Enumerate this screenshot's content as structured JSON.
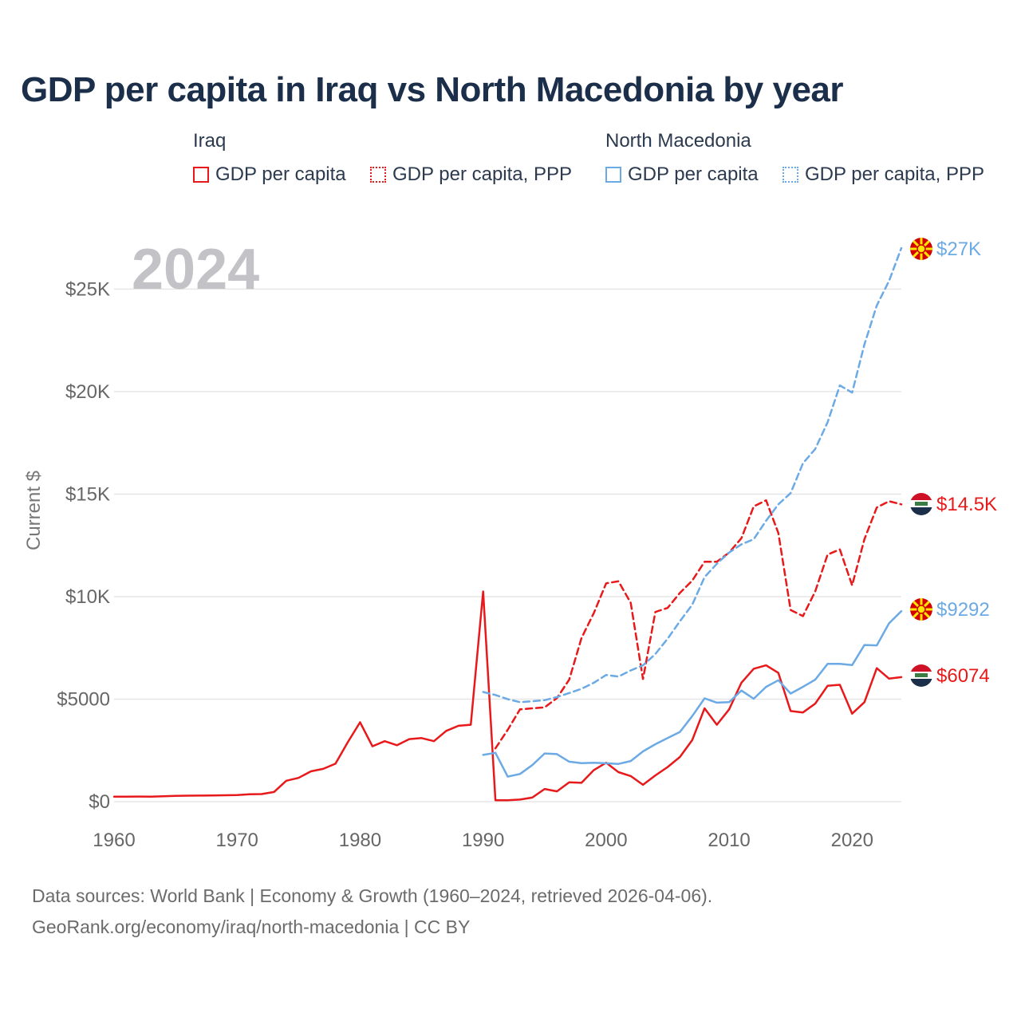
{
  "chart_data": {
    "type": "line",
    "title": "GDP per capita in Iraq vs North Macedonia by year",
    "ylabel": "Current $",
    "xlabel": "",
    "year_label": "2024",
    "xlim": [
      1960,
      2024
    ],
    "ylim": [
      0,
      27000
    ],
    "x_ticks": [
      1960,
      1970,
      1980,
      1990,
      2000,
      2010,
      2020
    ],
    "x_tick_labels": [
      "1960",
      "1970",
      "1980",
      "1990",
      "2000",
      "2010",
      "2020"
    ],
    "y_ticks": [
      0,
      5000,
      10000,
      15000,
      20000,
      25000
    ],
    "y_tick_labels": [
      "$0",
      "$5000",
      "$10K",
      "$15K",
      "$20K",
      "$25K"
    ],
    "legend_groups": [
      {
        "title": "Iraq",
        "items": [
          "GDP per capita",
          "GDP per capita, PPP"
        ]
      },
      {
        "title": "North Macedonia",
        "items": [
          "GDP per capita",
          "GDP per capita, PPP"
        ]
      }
    ],
    "series": [
      {
        "name": "Iraq GDP per capita",
        "country": "Iraq",
        "color": "#e8191a",
        "style": "solid",
        "end_label": "$6074",
        "x": [
          1960,
          1961,
          1962,
          1963,
          1964,
          1965,
          1966,
          1967,
          1968,
          1969,
          1970,
          1971,
          1972,
          1973,
          1974,
          1975,
          1976,
          1977,
          1978,
          1979,
          1980,
          1981,
          1982,
          1983,
          1984,
          1985,
          1986,
          1987,
          1988,
          1989,
          1990,
          1991,
          1992,
          1993,
          1994,
          1995,
          1996,
          1997,
          1998,
          1999,
          2000,
          2001,
          2002,
          2003,
          2004,
          2005,
          2006,
          2007,
          2008,
          2009,
          2010,
          2011,
          2012,
          2013,
          2014,
          2015,
          2016,
          2017,
          2018,
          2019,
          2020,
          2021,
          2022,
          2023,
          2024
        ],
        "values": [
          240,
          245,
          250,
          245,
          260,
          280,
          290,
          295,
          300,
          310,
          320,
          360,
          370,
          470,
          1020,
          1160,
          1480,
          1600,
          1850,
          2900,
          3870,
          2700,
          2950,
          2750,
          3050,
          3100,
          2950,
          3450,
          3700,
          3750,
          10250,
          70,
          70,
          100,
          200,
          620,
          500,
          940,
          920,
          1540,
          1900,
          1440,
          1250,
          820,
          1280,
          1690,
          2180,
          3000,
          4550,
          3750,
          4500,
          5800,
          6480,
          6650,
          6280,
          4420,
          4350,
          4780,
          5650,
          5700,
          4290,
          4850,
          6510,
          6000,
          6074
        ]
      },
      {
        "name": "Iraq GDP per capita, PPP",
        "country": "Iraq",
        "color": "#e8191a",
        "style": "dashed",
        "end_label": "$14.5K",
        "x": [
          1991,
          1992,
          1993,
          1994,
          1995,
          1996,
          1997,
          1998,
          1999,
          2000,
          2001,
          2002,
          2003,
          2004,
          2005,
          2006,
          2007,
          2008,
          2009,
          2010,
          2011,
          2012,
          2013,
          2014,
          2015,
          2016,
          2017,
          2018,
          2019,
          2020,
          2021,
          2022,
          2023,
          2024
        ],
        "values": [
          2600,
          3500,
          4500,
          4550,
          4600,
          5050,
          5950,
          7980,
          9200,
          10650,
          10750,
          9700,
          5980,
          9250,
          9450,
          10180,
          10780,
          11700,
          11700,
          12150,
          12850,
          14400,
          14700,
          13100,
          9350,
          9050,
          10250,
          12050,
          12300,
          10550,
          12800,
          14350,
          14650,
          14500
        ]
      },
      {
        "name": "North Macedonia GDP per capita",
        "country": "North Macedonia",
        "color": "#6baae4",
        "style": "solid",
        "end_label": "$9292",
        "x": [
          1990,
          1991,
          1992,
          1993,
          1994,
          1995,
          1996,
          1997,
          1998,
          1999,
          2000,
          2001,
          2002,
          2003,
          2004,
          2005,
          2006,
          2007,
          2008,
          2009,
          2010,
          2011,
          2012,
          2013,
          2014,
          2015,
          2016,
          2017,
          2018,
          2019,
          2020,
          2021,
          2022,
          2023,
          2024
        ],
        "values": [
          2280,
          2380,
          1220,
          1350,
          1780,
          2350,
          2320,
          1950,
          1880,
          1900,
          1870,
          1840,
          1980,
          2450,
          2800,
          3100,
          3400,
          4170,
          5040,
          4830,
          4850,
          5420,
          5020,
          5600,
          5920,
          5270,
          5600,
          5950,
          6720,
          6720,
          6660,
          7640,
          7620,
          8700,
          9292
        ]
      },
      {
        "name": "North Macedonia GDP per capita, PPP",
        "country": "North Macedonia",
        "color": "#6baae4",
        "style": "dashed",
        "end_label": "$27K",
        "x": [
          1990,
          1991,
          1992,
          1993,
          1994,
          1995,
          1996,
          1997,
          1998,
          1999,
          2000,
          2001,
          2002,
          2003,
          2004,
          2005,
          2006,
          2007,
          2008,
          2009,
          2010,
          2011,
          2012,
          2013,
          2014,
          2015,
          2016,
          2017,
          2018,
          2019,
          2020,
          2021,
          2022,
          2023,
          2024
        ],
        "values": [
          5350,
          5200,
          5000,
          4850,
          4900,
          4950,
          5100,
          5300,
          5500,
          5800,
          6180,
          6100,
          6400,
          6650,
          7200,
          7950,
          8800,
          9600,
          10950,
          11600,
          12150,
          12550,
          12800,
          13700,
          14500,
          15050,
          16500,
          17200,
          18500,
          20300,
          19950,
          22300,
          24200,
          25400,
          27000
        ]
      }
    ]
  },
  "sources": {
    "line1": "Data sources: World Bank | Economy & Growth (1960–2024, retrieved 2026-04-06).",
    "line2": "GeoRank.org/economy/iraq/north-macedonia | CC BY"
  },
  "colors": {
    "iraq": "#e8191a",
    "north_macedonia": "#6baae4",
    "title": "#1b2f4a",
    "grid": "#e6e6e6",
    "tick": "#666666",
    "year_watermark": "#c3c3c7"
  }
}
